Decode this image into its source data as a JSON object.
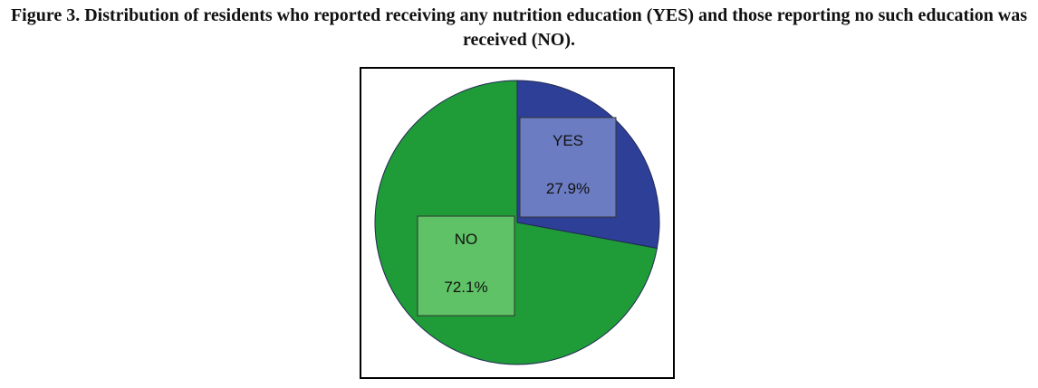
{
  "figure_caption": "Figure 3. Distribution of residents who reported receiving any nutrition education (YES) and those reporting no such education was received (NO).",
  "chart_data": {
    "type": "pie",
    "title": "",
    "slices": [
      {
        "label": "YES",
        "value": 27.9,
        "value_label": "27.9%",
        "color": "#2e3f98",
        "label_box_color": "#6b7cc2"
      },
      {
        "label": "NO",
        "value": 72.1,
        "value_label": "72.1%",
        "color": "#1f9b37",
        "label_box_color": "#5fc266"
      }
    ],
    "start_angle": "12 o'clock",
    "direction": "clockwise",
    "legend": "none"
  }
}
